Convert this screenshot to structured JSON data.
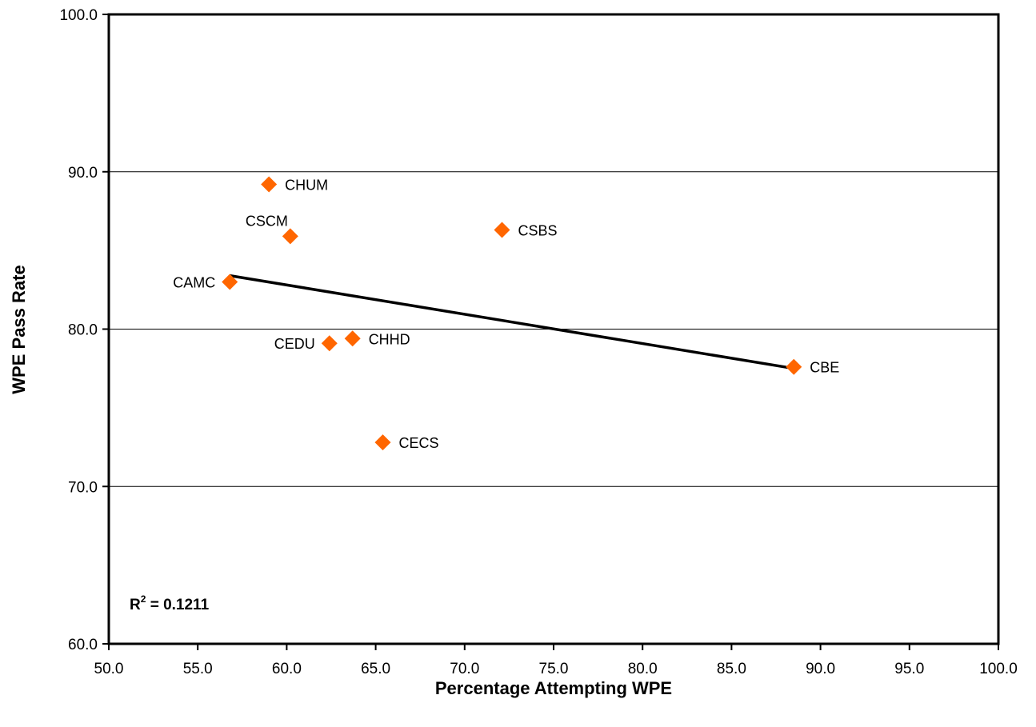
{
  "chart_data": {
    "type": "scatter",
    "xlabel": "Percentage Attempting WPE",
    "ylabel": "WPE Pass Rate",
    "xlim": [
      50,
      100
    ],
    "ylim": [
      60,
      100
    ],
    "x_ticks": [
      "50.0",
      "55.0",
      "60.0",
      "65.0",
      "70.0",
      "75.0",
      "80.0",
      "85.0",
      "90.0",
      "95.0",
      "100.0"
    ],
    "y_ticks": [
      "60.0",
      "70.0",
      "80.0",
      "90.0",
      "100.0"
    ],
    "grid": "horizontal",
    "marker_color": "#ff6600",
    "marker_shape": "diamond",
    "trendline": {
      "type": "linear",
      "x": [
        56.8,
        88.5
      ],
      "y": [
        83.4,
        77.5
      ],
      "color": "#000000"
    },
    "r_squared_label": "0.1211",
    "points": [
      {
        "label": "CHUM",
        "x": 59.0,
        "y": 89.2,
        "label_pos": "right"
      },
      {
        "label": "CSCM",
        "x": 60.2,
        "y": 85.9,
        "label_pos": "upper-left"
      },
      {
        "label": "CSBS",
        "x": 72.1,
        "y": 86.3,
        "label_pos": "right"
      },
      {
        "label": "CAMC",
        "x": 56.8,
        "y": 83.0,
        "label_pos": "left"
      },
      {
        "label": "CEDU",
        "x": 62.4,
        "y": 79.1,
        "label_pos": "left"
      },
      {
        "label": "CHHD",
        "x": 63.7,
        "y": 79.4,
        "label_pos": "right"
      },
      {
        "label": "CBE",
        "x": 88.5,
        "y": 77.6,
        "label_pos": "right"
      },
      {
        "label": "CECS",
        "x": 65.4,
        "y": 72.8,
        "label_pos": "right"
      }
    ]
  }
}
